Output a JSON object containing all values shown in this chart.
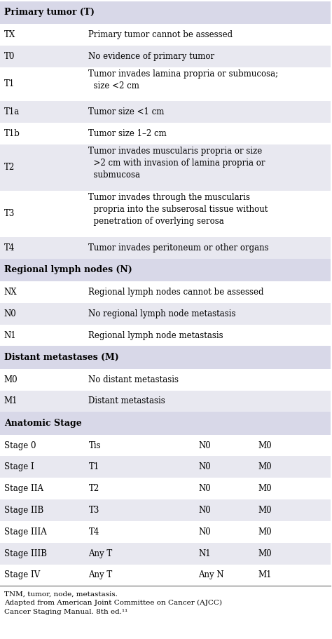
{
  "bg_color": "#ffffff",
  "header_bg": "#d8d8e8",
  "row_bg_light": "#ffffff",
  "row_bg_dark": "#e8e8f0",
  "fig_width": 4.74,
  "fig_height": 9.11,
  "footnote": "TNM, tumor, node, metastasis.\nAdapted from American Joint Committee on Cancer (AJCC)\nCancer Staging Manual. 8th ed.¹¹",
  "rows": [
    {
      "type": "section_header",
      "col1": "Primary tumor (T)",
      "col2": "",
      "col3": "",
      "col4": ""
    },
    {
      "type": "data",
      "col1": "TX",
      "col2": "Primary tumor cannot be assessed",
      "col3": "",
      "col4": "",
      "shade": false
    },
    {
      "type": "data",
      "col1": "T0",
      "col2": "No evidence of primary tumor",
      "col3": "",
      "col4": "",
      "shade": true
    },
    {
      "type": "data",
      "col1": "T1",
      "col2": "Tumor invades lamina propria or submucosa;\n  size <2 cm",
      "col3": "",
      "col4": "",
      "shade": false
    },
    {
      "type": "data",
      "col1": "T1a",
      "col2": "Tumor size <1 cm",
      "col3": "",
      "col4": "",
      "shade": true
    },
    {
      "type": "data",
      "col1": "T1b",
      "col2": "Tumor size 1–2 cm",
      "col3": "",
      "col4": "",
      "shade": false
    },
    {
      "type": "data",
      "col1": "T2",
      "col2": "Tumor invades muscularis propria or size\n  >2 cm with invasion of lamina propria or\n  submucosa",
      "col3": "",
      "col4": "",
      "shade": true
    },
    {
      "type": "data",
      "col1": "T3",
      "col2": "Tumor invades through the muscularis\n  propria into the subserosal tissue without\n  penetration of overlying serosa",
      "col3": "",
      "col4": "",
      "shade": false
    },
    {
      "type": "data",
      "col1": "T4",
      "col2": "Tumor invades peritoneum or other organs",
      "col3": "",
      "col4": "",
      "shade": true
    },
    {
      "type": "section_header",
      "col1": "Regional lymph nodes (N)",
      "col2": "",
      "col3": "",
      "col4": ""
    },
    {
      "type": "data",
      "col1": "NX",
      "col2": "Regional lymph nodes cannot be assessed",
      "col3": "",
      "col4": "",
      "shade": false
    },
    {
      "type": "data",
      "col1": "N0",
      "col2": "No regional lymph node metastasis",
      "col3": "",
      "col4": "",
      "shade": true
    },
    {
      "type": "data",
      "col1": "N1",
      "col2": "Regional lymph node metastasis",
      "col3": "",
      "col4": "",
      "shade": false
    },
    {
      "type": "section_header",
      "col1": "Distant metastases (M)",
      "col2": "",
      "col3": "",
      "col4": ""
    },
    {
      "type": "data",
      "col1": "M0",
      "col2": "No distant metastasis",
      "col3": "",
      "col4": "",
      "shade": false
    },
    {
      "type": "data",
      "col1": "M1",
      "col2": "Distant metastasis",
      "col3": "",
      "col4": "",
      "shade": true
    },
    {
      "type": "section_header",
      "col1": "Anatomic Stage",
      "col2": "",
      "col3": "",
      "col4": ""
    },
    {
      "type": "data4",
      "col1": "Stage 0",
      "col2": "Tis",
      "col3": "N0",
      "col4": "M0",
      "shade": false
    },
    {
      "type": "data4",
      "col1": "Stage I",
      "col2": "T1",
      "col3": "N0",
      "col4": "M0",
      "shade": true
    },
    {
      "type": "data4",
      "col1": "Stage IIA",
      "col2": "T2",
      "col3": "N0",
      "col4": "M0",
      "shade": false
    },
    {
      "type": "data4",
      "col1": "Stage IIB",
      "col2": "T3",
      "col3": "N0",
      "col4": "M0",
      "shade": true
    },
    {
      "type": "data4",
      "col1": "Stage IIIA",
      "col2": "T4",
      "col3": "N0",
      "col4": "M0",
      "shade": false
    },
    {
      "type": "data4",
      "col1": "Stage IIIB",
      "col2": "Any T",
      "col3": "N1",
      "col4": "M0",
      "shade": true
    },
    {
      "type": "data4",
      "col1": "Stage IV",
      "col2": "Any T",
      "col3": "Any N",
      "col4": "M1",
      "shade": false
    }
  ]
}
